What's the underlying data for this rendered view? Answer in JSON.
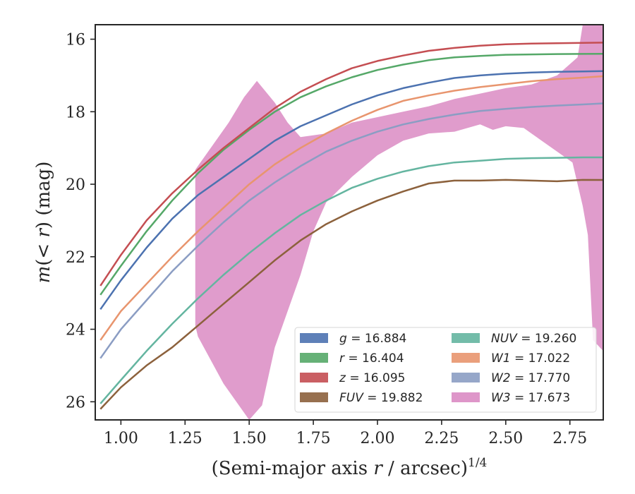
{
  "chart_data": {
    "type": "line",
    "xlabel": "(Semi-major axis r / arcsec)^{1/4}",
    "xlabel_parts": {
      "main": "(Semi-major axis ",
      "var": "r",
      "unit": " / arcsec)",
      "sup": "1/4"
    },
    "ylabel": "m(<r) (mag)",
    "ylabel_parts": {
      "main": "m",
      "mid": "(< ",
      "var": "r",
      "tail": ") (mag)"
    },
    "xlim": [
      0.9,
      2.88
    ],
    "ylim": [
      26.5,
      15.6
    ],
    "y_inverted": true,
    "xticks": [
      "1.00",
      "1.25",
      "1.50",
      "1.75",
      "2.00",
      "2.25",
      "2.50",
      "2.75"
    ],
    "xtick_values": [
      1.0,
      1.25,
      1.5,
      1.75,
      2.0,
      2.25,
      2.5,
      2.75
    ],
    "yticks": [
      "16",
      "18",
      "20",
      "22",
      "24",
      "26"
    ],
    "ytick_values": [
      16,
      18,
      20,
      22,
      24,
      26
    ],
    "grid": false,
    "legend_position": "lower-right",
    "series": [
      {
        "name": "g = 16.884",
        "label_var": "g",
        "label_value": "16.884",
        "color": "#4c72b0",
        "data": [
          [
            0.92,
            23.45
          ],
          [
            1.0,
            22.65
          ],
          [
            1.1,
            21.75
          ],
          [
            1.2,
            20.95
          ],
          [
            1.3,
            20.3
          ],
          [
            1.4,
            19.8
          ],
          [
            1.5,
            19.3
          ],
          [
            1.6,
            18.8
          ],
          [
            1.7,
            18.4
          ],
          [
            1.8,
            18.1
          ],
          [
            1.9,
            17.8
          ],
          [
            2.0,
            17.55
          ],
          [
            2.1,
            17.35
          ],
          [
            2.2,
            17.2
          ],
          [
            2.3,
            17.07
          ],
          [
            2.4,
            17.0
          ],
          [
            2.5,
            16.95
          ],
          [
            2.6,
            16.92
          ],
          [
            2.7,
            16.9
          ],
          [
            2.8,
            16.89
          ],
          [
            2.88,
            16.88
          ]
        ]
      },
      {
        "name": "r = 16.404",
        "label_var": "r",
        "label_value": "16.404",
        "color": "#55a868",
        "data": [
          [
            0.92,
            23.05
          ],
          [
            1.0,
            22.25
          ],
          [
            1.1,
            21.3
          ],
          [
            1.2,
            20.45
          ],
          [
            1.3,
            19.7
          ],
          [
            1.4,
            19.05
          ],
          [
            1.5,
            18.5
          ],
          [
            1.6,
            18.0
          ],
          [
            1.7,
            17.6
          ],
          [
            1.8,
            17.3
          ],
          [
            1.9,
            17.05
          ],
          [
            2.0,
            16.85
          ],
          [
            2.1,
            16.7
          ],
          [
            2.2,
            16.58
          ],
          [
            2.3,
            16.5
          ],
          [
            2.4,
            16.46
          ],
          [
            2.5,
            16.43
          ],
          [
            2.6,
            16.42
          ],
          [
            2.7,
            16.41
          ],
          [
            2.8,
            16.405
          ],
          [
            2.88,
            16.404
          ]
        ]
      },
      {
        "name": "z = 16.095",
        "label_var": "z",
        "label_value": "16.095",
        "color": "#c44e52",
        "data": [
          [
            0.92,
            22.8
          ],
          [
            1.0,
            21.95
          ],
          [
            1.1,
            21.0
          ],
          [
            1.2,
            20.25
          ],
          [
            1.3,
            19.6
          ],
          [
            1.4,
            19.0
          ],
          [
            1.5,
            18.45
          ],
          [
            1.6,
            17.9
          ],
          [
            1.7,
            17.45
          ],
          [
            1.8,
            17.1
          ],
          [
            1.9,
            16.8
          ],
          [
            2.0,
            16.6
          ],
          [
            2.1,
            16.45
          ],
          [
            2.2,
            16.32
          ],
          [
            2.3,
            16.24
          ],
          [
            2.4,
            16.18
          ],
          [
            2.5,
            16.14
          ],
          [
            2.6,
            16.12
          ],
          [
            2.7,
            16.11
          ],
          [
            2.8,
            16.1
          ],
          [
            2.88,
            16.095
          ]
        ]
      },
      {
        "name": "FUV = 19.882",
        "label_var": "FUV",
        "label_value": "19.882",
        "color": "#8c613c",
        "data": [
          [
            0.92,
            26.2
          ],
          [
            1.0,
            25.6
          ],
          [
            1.1,
            25.0
          ],
          [
            1.2,
            24.5
          ],
          [
            1.3,
            23.9
          ],
          [
            1.4,
            23.3
          ],
          [
            1.5,
            22.7
          ],
          [
            1.6,
            22.1
          ],
          [
            1.7,
            21.55
          ],
          [
            1.8,
            21.1
          ],
          [
            1.9,
            20.75
          ],
          [
            2.0,
            20.45
          ],
          [
            2.1,
            20.2
          ],
          [
            2.2,
            19.98
          ],
          [
            2.3,
            19.9
          ],
          [
            2.4,
            19.9
          ],
          [
            2.5,
            19.88
          ],
          [
            2.6,
            19.9
          ],
          [
            2.7,
            19.92
          ],
          [
            2.8,
            19.88
          ],
          [
            2.88,
            19.882
          ]
        ]
      },
      {
        "name": "NUV = 19.260",
        "label_var": "NUV",
        "label_value": "19.260",
        "color": "#64b5a0",
        "data": [
          [
            0.92,
            26.05
          ],
          [
            1.0,
            25.4
          ],
          [
            1.1,
            24.6
          ],
          [
            1.2,
            23.85
          ],
          [
            1.3,
            23.15
          ],
          [
            1.4,
            22.5
          ],
          [
            1.5,
            21.9
          ],
          [
            1.6,
            21.35
          ],
          [
            1.7,
            20.85
          ],
          [
            1.8,
            20.45
          ],
          [
            1.9,
            20.1
          ],
          [
            2.0,
            19.85
          ],
          [
            2.1,
            19.65
          ],
          [
            2.2,
            19.5
          ],
          [
            2.3,
            19.4
          ],
          [
            2.4,
            19.35
          ],
          [
            2.5,
            19.3
          ],
          [
            2.6,
            19.28
          ],
          [
            2.7,
            19.27
          ],
          [
            2.8,
            19.26
          ],
          [
            2.88,
            19.26
          ]
        ]
      },
      {
        "name": "W1 = 17.022",
        "label_var": "W1",
        "label_value": "17.022",
        "color": "#e8956e",
        "data": [
          [
            0.92,
            24.3
          ],
          [
            1.0,
            23.5
          ],
          [
            1.1,
            22.75
          ],
          [
            1.2,
            22.0
          ],
          [
            1.3,
            21.3
          ],
          [
            1.4,
            20.65
          ],
          [
            1.5,
            20.0
          ],
          [
            1.6,
            19.45
          ],
          [
            1.7,
            19.0
          ],
          [
            1.8,
            18.6
          ],
          [
            1.9,
            18.25
          ],
          [
            2.0,
            17.95
          ],
          [
            2.1,
            17.7
          ],
          [
            2.2,
            17.55
          ],
          [
            2.3,
            17.42
          ],
          [
            2.4,
            17.32
          ],
          [
            2.5,
            17.24
          ],
          [
            2.6,
            17.16
          ],
          [
            2.7,
            17.1
          ],
          [
            2.8,
            17.06
          ],
          [
            2.88,
            17.02
          ]
        ]
      },
      {
        "name": "W2 = 17.770",
        "label_var": "W2",
        "label_value": "17.770",
        "color": "#8b9dc3",
        "data": [
          [
            0.92,
            24.8
          ],
          [
            1.0,
            24.0
          ],
          [
            1.1,
            23.2
          ],
          [
            1.2,
            22.4
          ],
          [
            1.3,
            21.7
          ],
          [
            1.4,
            21.05
          ],
          [
            1.5,
            20.45
          ],
          [
            1.6,
            19.95
          ],
          [
            1.7,
            19.5
          ],
          [
            1.8,
            19.1
          ],
          [
            1.9,
            18.8
          ],
          [
            2.0,
            18.55
          ],
          [
            2.1,
            18.35
          ],
          [
            2.2,
            18.2
          ],
          [
            2.3,
            18.08
          ],
          [
            2.4,
            17.98
          ],
          [
            2.5,
            17.92
          ],
          [
            2.6,
            17.87
          ],
          [
            2.7,
            17.83
          ],
          [
            2.8,
            17.8
          ],
          [
            2.88,
            17.77
          ]
        ]
      },
      {
        "name": "W3 = 17.673",
        "label_var": "W3",
        "label_value": "17.673",
        "color": "#da8bc3",
        "band_upper": [
          [
            1.29,
            19.6
          ],
          [
            1.35,
            19.0
          ],
          [
            1.42,
            18.3
          ],
          [
            1.48,
            17.6
          ],
          [
            1.53,
            17.15
          ],
          [
            1.6,
            17.75
          ],
          [
            1.65,
            18.3
          ],
          [
            1.7,
            18.7
          ],
          [
            1.8,
            18.6
          ],
          [
            1.9,
            18.3
          ],
          [
            2.0,
            18.15
          ],
          [
            2.1,
            18.0
          ],
          [
            2.2,
            17.85
          ],
          [
            2.3,
            17.65
          ],
          [
            2.4,
            17.5
          ],
          [
            2.5,
            17.35
          ],
          [
            2.6,
            17.25
          ],
          [
            2.7,
            17.0
          ],
          [
            2.78,
            16.5
          ],
          [
            2.8,
            15.6
          ],
          [
            2.88,
            15.6
          ]
        ],
        "band_lower": [
          [
            2.88,
            24.6
          ],
          [
            2.84,
            24.3
          ],
          [
            2.82,
            21.4
          ],
          [
            2.8,
            20.6
          ],
          [
            2.76,
            19.4
          ],
          [
            2.7,
            19.1
          ],
          [
            2.6,
            18.6
          ],
          [
            2.57,
            18.45
          ],
          [
            2.5,
            18.4
          ],
          [
            2.45,
            18.5
          ],
          [
            2.4,
            18.35
          ],
          [
            2.3,
            18.55
          ],
          [
            2.2,
            18.6
          ],
          [
            2.1,
            18.8
          ],
          [
            2.0,
            19.2
          ],
          [
            1.9,
            19.8
          ],
          [
            1.8,
            20.5
          ],
          [
            1.75,
            21.3
          ],
          [
            1.7,
            22.5
          ],
          [
            1.6,
            24.5
          ],
          [
            1.55,
            26.1
          ],
          [
            1.5,
            26.5
          ],
          [
            1.4,
            25.5
          ],
          [
            1.3,
            24.2
          ],
          [
            1.29,
            23.9
          ]
        ]
      }
    ],
    "legend_columns": [
      [
        "g = 16.884",
        "r = 16.404",
        "z = 16.095",
        "FUV = 19.882"
      ],
      [
        "NUV = 19.260",
        "W1 = 17.022",
        "W2 = 17.770",
        "W3 = 17.673"
      ]
    ]
  }
}
